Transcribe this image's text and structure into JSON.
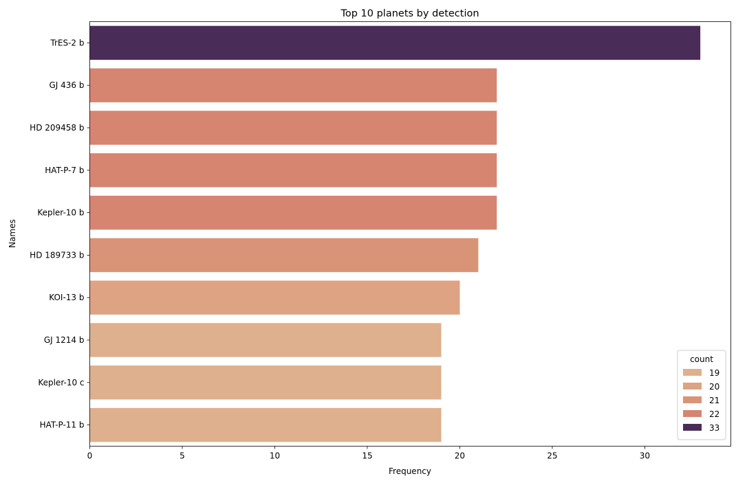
{
  "chart_data": {
    "type": "bar",
    "orientation": "horizontal",
    "title": "Top 10 planets by detection",
    "xlabel": "Frequency",
    "ylabel": "Names",
    "xlim": [
      0,
      34.65
    ],
    "xticks": [
      0,
      5,
      10,
      15,
      20,
      25,
      30
    ],
    "categories": [
      "TrES-2 b",
      "GJ 436 b",
      "HD 209458 b",
      "HAT-P-7 b",
      "Kepler-10 b",
      "HD 189733 b",
      "KOI-13 b",
      "GJ 1214 b",
      "Kepler-10 c",
      "HAT-P-11 b"
    ],
    "values": [
      33,
      22,
      22,
      22,
      22,
      21,
      20,
      19,
      19,
      19
    ],
    "grid": false,
    "legend": {
      "title": "count",
      "position": "bottom-right",
      "entries": [
        {
          "label": "19",
          "color": "#dfb08e"
        },
        {
          "label": "20",
          "color": "#dda383"
        },
        {
          "label": "21",
          "color": "#d99477"
        },
        {
          "label": "22",
          "color": "#d68571"
        },
        {
          "label": "33",
          "color": "#4a2c58"
        }
      ]
    },
    "colors_by_value": {
      "19": "#dfb08e",
      "20": "#dda383",
      "21": "#d99477",
      "22": "#d68571",
      "33": "#4a2c58"
    }
  }
}
